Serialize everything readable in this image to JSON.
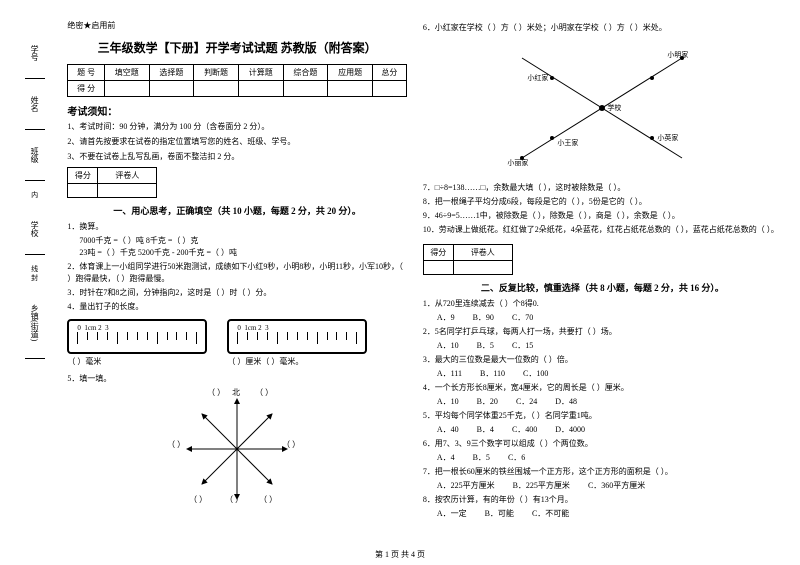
{
  "secret": "绝密★启用前",
  "title": "三年级数学【下册】开学考试试题 苏教版（附答案）",
  "tableHeaders": [
    "题 号",
    "填空题",
    "选择题",
    "判断题",
    "计算题",
    "综合题",
    "应用题",
    "总分"
  ],
  "tableRow2": "得 分",
  "noticeTitle": "考试须知：",
  "notices": [
    "1、考试时间：90 分钟，满分为 100 分（含卷面分 2 分）。",
    "2、请首先按要求在试卷的指定位置填写您的姓名、班级、学号。",
    "3、不要在试卷上乱写乱画，卷面不整洁扣 2 分。"
  ],
  "scoreBoxLabel": "得分  评卷人",
  "section1Title": "一、用心思考，正确填空（共 10 小题，每题 2 分，共 20 分）。",
  "q1": "1．换算。",
  "q1_lines": [
    "7000千克 =（    ）吨                8千克 =（    ）克",
    "23吨 =（    ）千克                  5200千克 - 200千克 =（    ）吨"
  ],
  "q2": "2．体育课上一小组同学进行50米跑测试，成绩如下小红9秒，小明8秒，小明11秒，小军10秒，（    ）跑得最快，（    ）跑得最慢。",
  "q3": "3．时针在7和8之间，分钟指向2，这时是（    ）时（    ）分。",
  "q4": "4．量出钉子的长度。",
  "q4_blank1": "（       ）毫米",
  "q4_blank2": "（    ）厘米（    ）毫米。",
  "q5": "5．填一填。",
  "q5_north": "北",
  "q6": "6．小红家在学校（    ）方（    ）米处；小明家在学校（    ）方（    ）米处。",
  "q6_labels": {
    "xh": "小明家",
    "xhong": "小红家",
    "xl": "小丽家",
    "xx": "学校",
    "xy": "小英家",
    "xw": "小王家"
  },
  "q7": "7．□÷8=138……□，余数最大填（       ），这时被除数是（       ）。",
  "q8": "8．把一根绳子平均分成6段，每段是它的（    ），5份是它的（    ）。",
  "q9": "9．46÷9=5……1中，被除数是（       ），除数是（       ），商是（       ），余数是（       ）。",
  "q10": "10．劳动课上做纸花。红红做了2朵纸花，4朵蓝花，红花占纸花总数的（       ），蓝花占纸花总数的（       ）。",
  "section2Title": "二、反复比较，慎重选择（共 8 小题，每题 2 分，共 16 分）。",
  "s2": [
    {
      "q": "1．从720里连续减去（    ）个8得0.",
      "opts": [
        "A．9",
        "B．90",
        "C．70"
      ]
    },
    {
      "q": "2．5名同学打乒乓球，每两人打一场，共要打（    ）场。",
      "opts": [
        "A．10",
        "B．5",
        "C．15"
      ]
    },
    {
      "q": "3．最大的三位数是最大一位数的（    ）倍。",
      "opts": [
        "A．111",
        "B．110",
        "C．100"
      ]
    },
    {
      "q": "4．一个长方形长8厘米，宽4厘米，它的周长是（    ）厘米。",
      "opts": [
        "A．10",
        "B．20",
        "C．24",
        "D．48"
      ]
    },
    {
      "q": "5．平均每个同学体重25千克，（    ）名同学重1吨。",
      "opts": [
        "A．40",
        "B．4",
        "C．400",
        "D．4000"
      ]
    },
    {
      "q": "6．用7、3、9三个数字可以组成（    ）个两位数。",
      "opts": [
        "A．4",
        "B．5",
        "C．6"
      ]
    },
    {
      "q": "7．把一根长60厘米的铁丝围城一个正方形，这个正方形的面积是（    ）。",
      "opts": [
        "A．225平方厘米",
        "B．225平方厘米",
        "C．360平方厘米"
      ]
    },
    {
      "q": "8．按农历计算，有的年份（    ）有13个月。",
      "opts": [
        "A．一定",
        "B．可能",
        "C．不可能"
      ]
    }
  ],
  "margin": {
    "xh": "学号",
    "xm": "姓名",
    "bj": "班级",
    "xx": "学校",
    "xz": "乡镇(街道)",
    "dash": "密   封   线   内   不   得   答   题"
  },
  "footer": "第 1 页 共 4 页"
}
